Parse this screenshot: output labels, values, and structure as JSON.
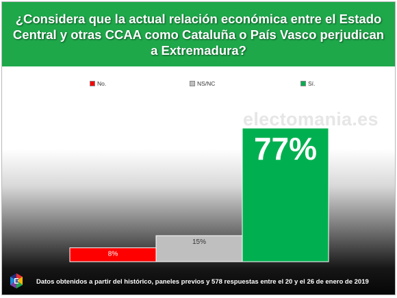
{
  "title": "¿Considera que la actual relación económica entre el Estado Central y otras CCAA como Cataluña o País Vasco perjudican a Extremadura?",
  "watermark": "electomania.es",
  "footnote": "Datos obtenidos a partir del histórico, paneles previos y 578 respuestas entre el 20 y el 26 de enero de 2019",
  "colors": {
    "header": "#1ea84a",
    "no": "#ff0000",
    "nsnc": "#bfbfbf",
    "si": "#00b050"
  },
  "legend": [
    {
      "label": "No.",
      "color": "#ff0000"
    },
    {
      "label": "NS/NC",
      "color": "#bfbfbf"
    },
    {
      "label": "Sí.",
      "color": "#00b050"
    }
  ],
  "chart_data": {
    "type": "bar",
    "categories": [
      "No.",
      "NS/NC",
      "Sí."
    ],
    "values": [
      8,
      15,
      77
    ],
    "value_labels": [
      "8%",
      "15%",
      "77%"
    ],
    "ylim": [
      0,
      90
    ],
    "grid": false,
    "legend_position": "top"
  }
}
